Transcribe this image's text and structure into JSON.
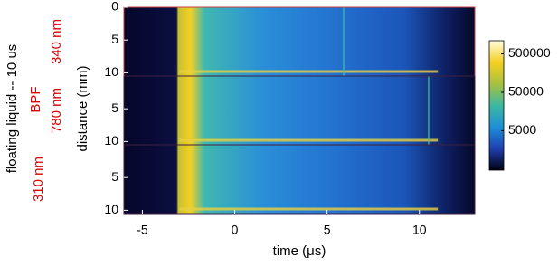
{
  "chart_data": {
    "type": "heatmap",
    "xlabel": "time (μs)",
    "ylabel": "distance (mm)",
    "xlim": [
      -6,
      13
    ],
    "xticks": [
      -5,
      0,
      5,
      10
    ],
    "panels": [
      {
        "label": "340 nm",
        "ylim": [
          0,
          10.5
        ],
        "yticks": [
          0,
          5,
          10
        ],
        "vline": 5.9
      },
      {
        "label": "780 nm",
        "ylim": [
          0,
          10.5
        ],
        "yticks": [
          5,
          10
        ],
        "vline": 10.5
      },
      {
        "label": "310 nm",
        "ylim": [
          0,
          10.5
        ],
        "yticks": [
          5,
          10
        ]
      }
    ],
    "colorbar": {
      "scale": "log",
      "lim": [
        470,
        1100000
      ],
      "ticks": [
        5000,
        50000,
        500000
      ],
      "colors": [
        "#000010",
        "#1f3fb0",
        "#1e8fd8",
        "#3cb8a0",
        "#a8c040",
        "#f5d020",
        "#fffce0"
      ]
    },
    "sample": "floating  liquid -- 10 us",
    "filter": "BPF"
  }
}
